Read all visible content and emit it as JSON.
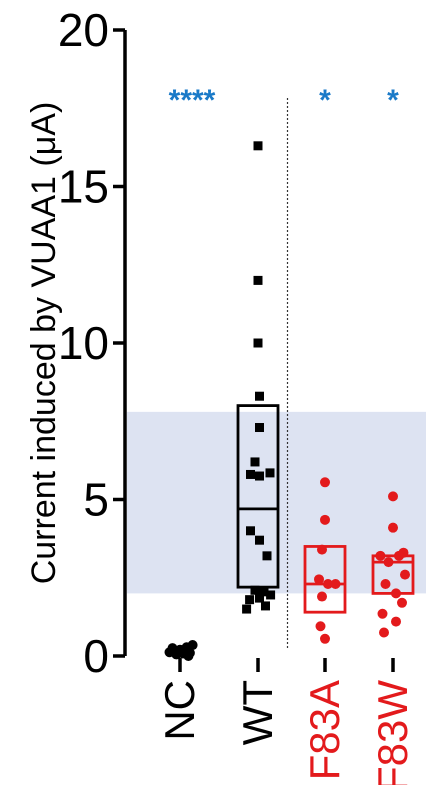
{
  "chart_data": {
    "type": "scatter",
    "title": "",
    "ylabel": "Current induced by VUAA1 (μA)",
    "ylim": [
      0,
      20
    ],
    "yticks": [
      "0",
      "5",
      "10",
      "15",
      "20"
    ],
    "grid": false,
    "categories": [
      "NC",
      "WT",
      "F83A",
      "F83W"
    ],
    "category_colors": [
      "#000000",
      "#000000",
      "#e31a1c",
      "#e31a1c"
    ],
    "shaded_band": {
      "from": 2.0,
      "to": 7.8,
      "color": "#dde3f2"
    },
    "separator_after_category": "WT",
    "significance": [
      {
        "category": "NC",
        "label": "****",
        "color": "#1a7ac8"
      },
      {
        "category": "F83A",
        "label": "*",
        "color": "#1a7ac8"
      },
      {
        "category": "F83W",
        "label": "*",
        "color": "#1a7ac8"
      }
    ],
    "series": [
      {
        "category": "NC",
        "marker": "circle",
        "box": null,
        "points": [
          {
            "offset": -0.35,
            "y": 0.12
          },
          {
            "offset": -0.25,
            "y": 0.25
          },
          {
            "offset": -0.12,
            "y": 0.05
          },
          {
            "offset": 0.0,
            "y": 0.2
          },
          {
            "offset": 0.1,
            "y": 0.08
          },
          {
            "offset": 0.22,
            "y": 0.28
          },
          {
            "offset": 0.33,
            "y": 0.1
          },
          {
            "offset": 0.42,
            "y": 0.35
          },
          {
            "offset": -0.05,
            "y": 0.15
          },
          {
            "offset": 0.28,
            "y": 0.0
          }
        ]
      },
      {
        "category": "WT",
        "marker": "square",
        "box": {
          "low": 2.2,
          "median": 4.7,
          "high": 8.0
        },
        "points": [
          {
            "offset": 0.0,
            "y": 16.3
          },
          {
            "offset": 0.0,
            "y": 12.0
          },
          {
            "offset": 0.0,
            "y": 10.0
          },
          {
            "offset": 0.05,
            "y": 8.3
          },
          {
            "offset": 0.05,
            "y": 7.3
          },
          {
            "offset": -0.1,
            "y": 6.2
          },
          {
            "offset": -0.25,
            "y": 5.8
          },
          {
            "offset": 0.05,
            "y": 5.75
          },
          {
            "offset": 0.4,
            "y": 5.85
          },
          {
            "offset": -0.25,
            "y": 4.0
          },
          {
            "offset": 0.05,
            "y": 3.7
          },
          {
            "offset": 0.3,
            "y": 3.2
          },
          {
            "offset": -0.1,
            "y": 2.1
          },
          {
            "offset": 0.2,
            "y": 2.05
          },
          {
            "offset": -0.28,
            "y": 1.8
          },
          {
            "offset": 0.05,
            "y": 1.85
          },
          {
            "offset": 0.25,
            "y": 1.6
          },
          {
            "offset": -0.38,
            "y": 1.5
          },
          {
            "offset": 0.42,
            "y": 1.95
          }
        ]
      },
      {
        "category": "F83A",
        "marker": "circle",
        "box": {
          "low": 1.4,
          "median": 2.3,
          "high": 3.5
        },
        "points": [
          {
            "offset": 0.0,
            "y": 5.55
          },
          {
            "offset": 0.0,
            "y": 4.35
          },
          {
            "offset": -0.1,
            "y": 3.4
          },
          {
            "offset": -0.2,
            "y": 2.45
          },
          {
            "offset": 0.1,
            "y": 2.3
          },
          {
            "offset": 0.35,
            "y": 2.3
          },
          {
            "offset": -0.1,
            "y": 1.9
          },
          {
            "offset": -0.15,
            "y": 0.95
          },
          {
            "offset": 0.0,
            "y": 0.55
          }
        ]
      },
      {
        "category": "F83W",
        "marker": "circle",
        "box": {
          "low": 2.0,
          "median": 3.0,
          "high": 3.2
        },
        "points": [
          {
            "offset": 0.0,
            "y": 5.1
          },
          {
            "offset": 0.0,
            "y": 4.1
          },
          {
            "offset": -0.42,
            "y": 3.2
          },
          {
            "offset": 0.35,
            "y": 3.3
          },
          {
            "offset": -0.15,
            "y": 3.0
          },
          {
            "offset": 0.2,
            "y": 3.2
          },
          {
            "offset": 0.4,
            "y": 2.6
          },
          {
            "offset": -0.25,
            "y": 2.3
          },
          {
            "offset": 0.1,
            "y": 2.0
          },
          {
            "offset": 0.3,
            "y": 1.7
          },
          {
            "offset": -0.35,
            "y": 1.35
          },
          {
            "offset": 0.1,
            "y": 1.1
          },
          {
            "offset": -0.3,
            "y": 0.75
          }
        ]
      }
    ]
  }
}
